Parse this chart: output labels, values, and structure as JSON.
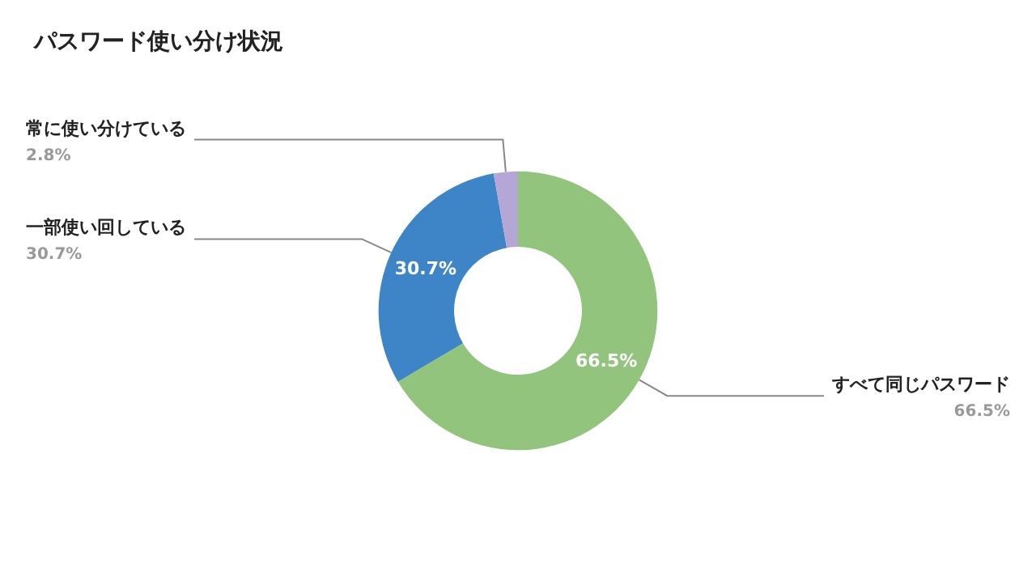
{
  "chart_data": {
    "type": "donut",
    "title": "パスワード使い分け状況",
    "categories": [
      "すべて同じパスワード",
      "一部使い回している",
      "常に使い分けている"
    ],
    "values": [
      66.5,
      30.7,
      2.8
    ],
    "colors": [
      "#93c47d",
      "#3d85c6",
      "#b4a7d6"
    ],
    "value_labels": [
      "66.5%",
      "30.7%",
      "2.8%"
    ],
    "legend": false
  }
}
